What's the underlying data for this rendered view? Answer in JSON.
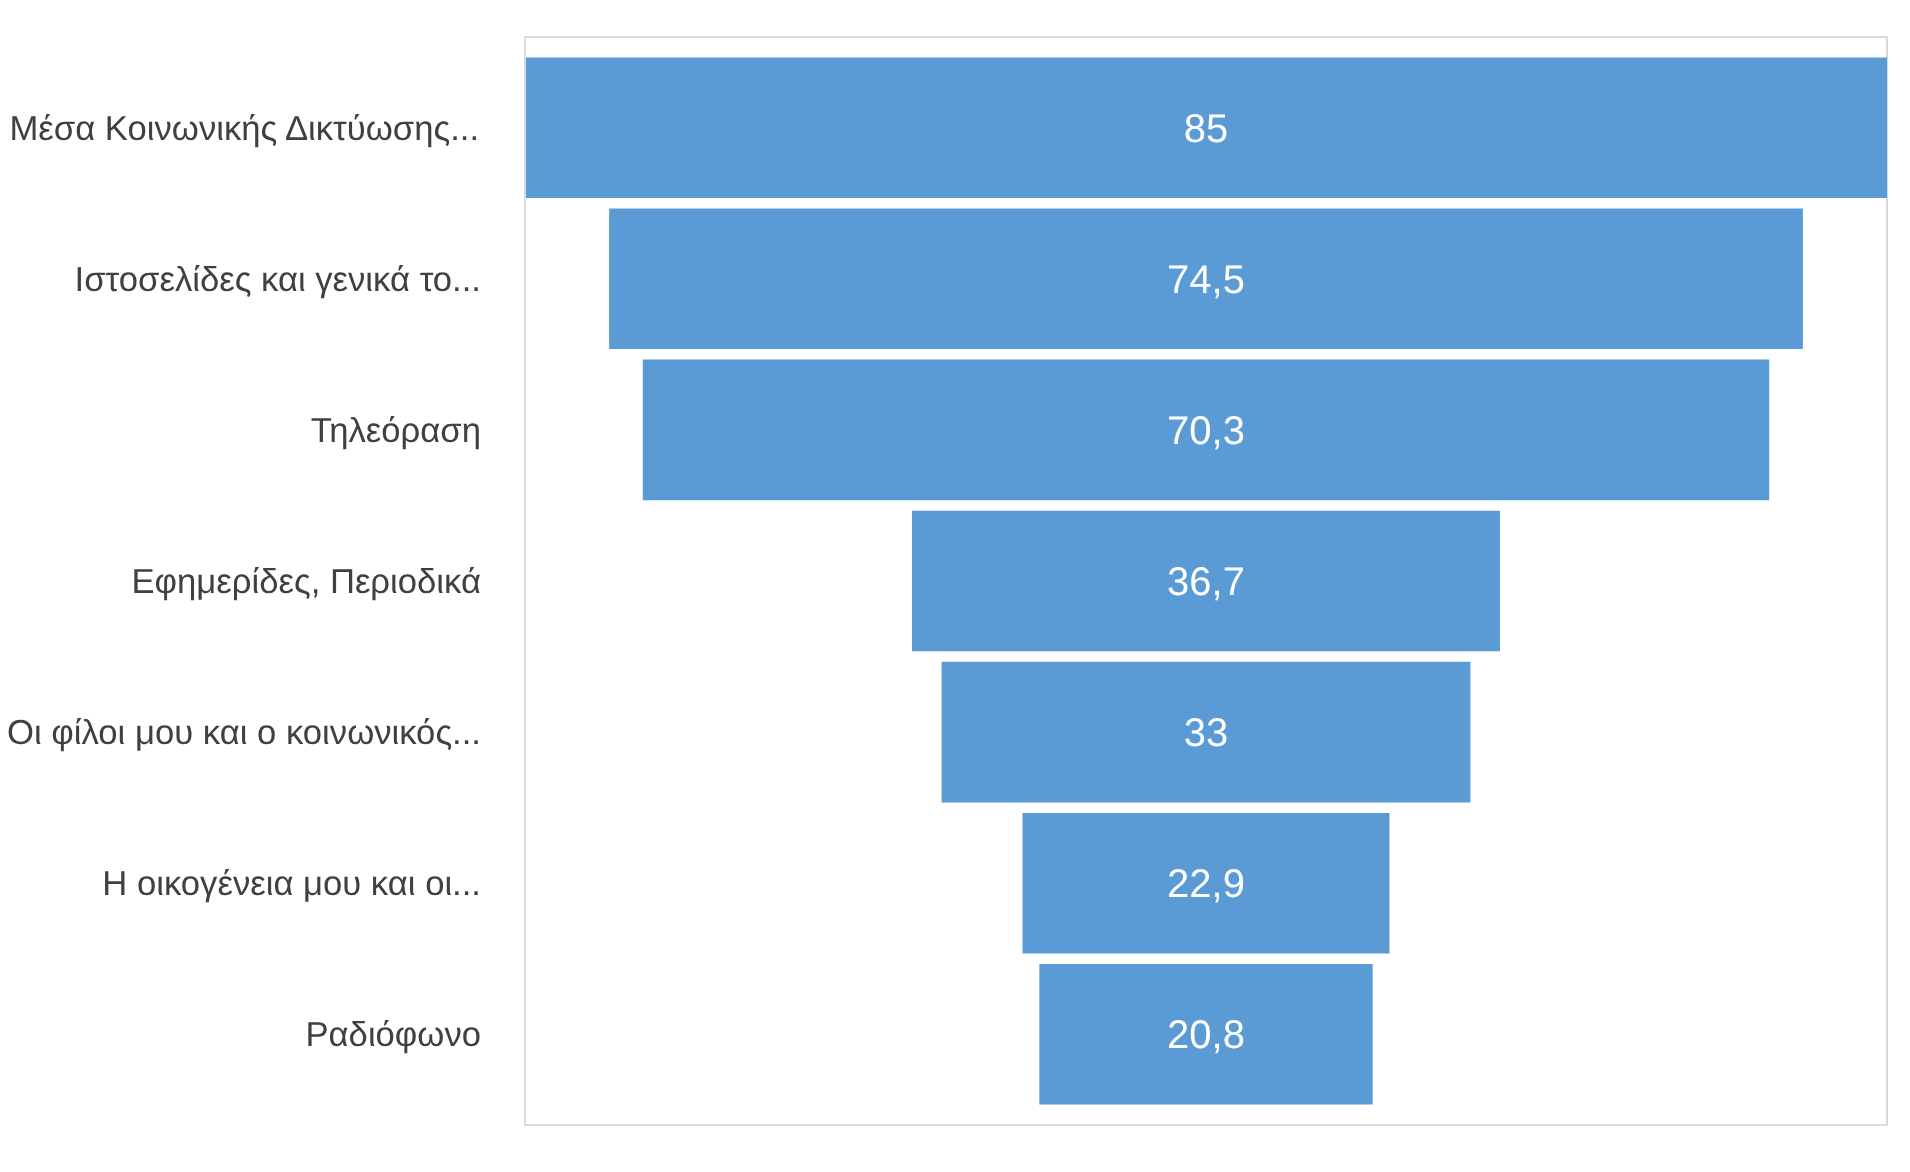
{
  "chart_data": {
    "type": "other",
    "categories": [
      "Μέσα Κοινωνικής Δικτύωσης...",
      "Ιστοσελίδες και γενικά το...",
      "Τηλεόραση",
      "Εφημερίδες, Περιοδικά",
      "Οι φίλοι μου και ο κοινωνικός...",
      "Η οικογένεια μου και οι...",
      "Ραδιόφωνο"
    ],
    "values": [
      85,
      74.5,
      70.3,
      36.7,
      33,
      22.9,
      20.8
    ],
    "value_labels": [
      "85",
      "74,5",
      "70,3",
      "36,7",
      "33",
      "22,9",
      "20,8"
    ],
    "color": "#5b9bd5"
  }
}
